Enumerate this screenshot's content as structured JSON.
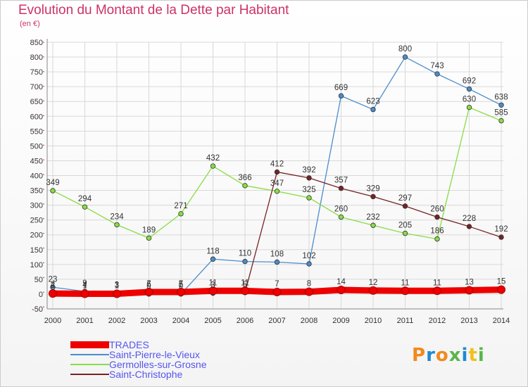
{
  "chart_data": {
    "type": "line",
    "title": "Evolution du Montant de la Dette par Habitant",
    "unit": "(en €)",
    "x": [
      "2000",
      "2001",
      "2002",
      "2003",
      "2004",
      "2005",
      "2006",
      "2007",
      "2008",
      "2009",
      "2010",
      "2011",
      "2012",
      "2013",
      "2014"
    ],
    "ylim": [
      -50,
      850
    ],
    "yticks": [
      -50,
      0,
      50,
      100,
      150,
      200,
      250,
      300,
      350,
      400,
      450,
      500,
      550,
      600,
      650,
      700,
      750,
      800,
      850
    ],
    "grid": true,
    "legend_position": "bottom-left",
    "series": [
      {
        "name": "TRADES",
        "color": "#ee0000",
        "values": [
          2,
          1,
          1,
          7,
          7,
          11,
          11,
          7,
          8,
          14,
          12,
          11,
          11,
          13,
          15
        ],
        "labels": [
          "2",
          "1",
          "1",
          "7",
          "7",
          "11",
          "11",
          "7",
          "8",
          "14",
          "12",
          "11",
          "11",
          "13",
          "15"
        ]
      },
      {
        "name": "Saint-Pierre-le-Vieux",
        "color": "#4b8ccc",
        "values": [
          23,
          9,
          3,
          0,
          0,
          118,
          110,
          108,
          102,
          669,
          623,
          800,
          743,
          692,
          638
        ],
        "labels": [
          "23",
          "9",
          "3",
          "0",
          "0",
          "118",
          "110",
          "108",
          "102",
          "669",
          "623",
          "800",
          "743",
          "692",
          "638"
        ]
      },
      {
        "name": "Germolles-sur-Grosne",
        "color": "#88dd44",
        "values": [
          349,
          294,
          234,
          189,
          271,
          432,
          366,
          347,
          325,
          260,
          232,
          205,
          186,
          630,
          585
        ],
        "labels": [
          "349",
          "294",
          "234",
          "189",
          "271",
          "432",
          "366",
          "347",
          "325",
          "260",
          "232",
          "205",
          "186",
          "630",
          "585"
        ]
      },
      {
        "name": "Saint-Christophe",
        "color": "#772222",
        "values": [
          4,
          4,
          3,
          6,
          5,
          3,
          5,
          412,
          392,
          357,
          329,
          297,
          260,
          228,
          192
        ],
        "labels": [
          "4",
          "4",
          "3",
          "6",
          "5",
          "3",
          "5",
          "412",
          "392",
          "357",
          "329",
          "297",
          "260",
          "228",
          "192"
        ]
      }
    ]
  },
  "logo": {
    "text": "Proxiti",
    "colors": [
      "#f08a1d",
      "#1d8ad6",
      "#f08a1d",
      "#5ab54a",
      "#1d8ad6",
      "#f0c01d",
      "#5ab54a"
    ]
  }
}
